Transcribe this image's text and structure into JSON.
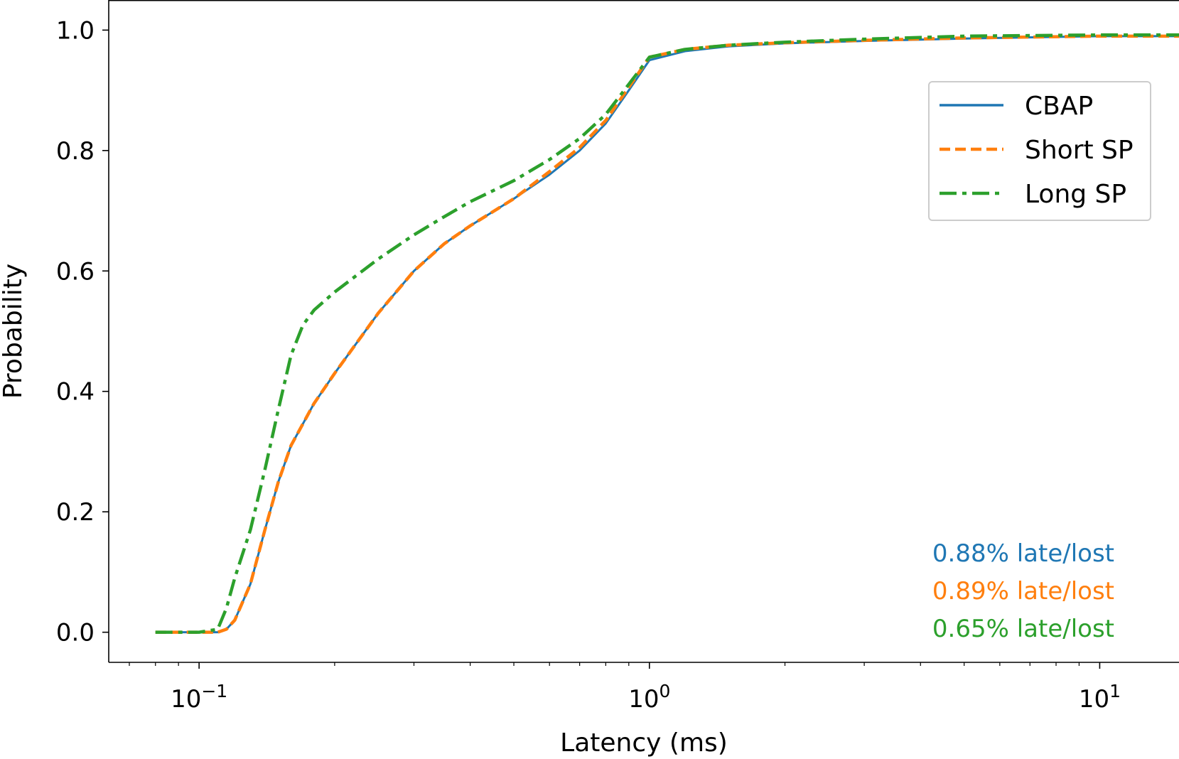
{
  "chart_data": {
    "type": "line",
    "xlabel": "Latency (ms)",
    "ylabel": "Probability",
    "xscale": "log",
    "xlim": [
      0.063,
      15
    ],
    "ylim": [
      -0.05,
      1.05
    ],
    "grid": false,
    "legend_position": "upper-right",
    "x_ticks": [
      {
        "value": 0.1,
        "base": "10",
        "exp": "−1"
      },
      {
        "value": 1,
        "base": "10",
        "exp": "0"
      },
      {
        "value": 10,
        "base": "10",
        "exp": "1"
      }
    ],
    "y_ticks": [
      {
        "value": 0.0,
        "label": "0.0"
      },
      {
        "value": 0.2,
        "label": "0.2"
      },
      {
        "value": 0.4,
        "label": "0.4"
      },
      {
        "value": 0.6,
        "label": "0.6"
      },
      {
        "value": 0.8,
        "label": "0.8"
      },
      {
        "value": 1.0,
        "label": "1.0"
      }
    ],
    "series": [
      {
        "name": "CBAP",
        "color": "#1f77b4",
        "dash": "solid",
        "points": [
          [
            0.08,
            0.0
          ],
          [
            0.1,
            0.0
          ],
          [
            0.11,
            0.0
          ],
          [
            0.115,
            0.005
          ],
          [
            0.12,
            0.02
          ],
          [
            0.13,
            0.08
          ],
          [
            0.14,
            0.17
          ],
          [
            0.15,
            0.25
          ],
          [
            0.16,
            0.31
          ],
          [
            0.18,
            0.38
          ],
          [
            0.2,
            0.43
          ],
          [
            0.25,
            0.53
          ],
          [
            0.3,
            0.6
          ],
          [
            0.35,
            0.645
          ],
          [
            0.4,
            0.675
          ],
          [
            0.5,
            0.72
          ],
          [
            0.6,
            0.76
          ],
          [
            0.7,
            0.8
          ],
          [
            0.8,
            0.845
          ],
          [
            0.9,
            0.9
          ],
          [
            1.0,
            0.95
          ],
          [
            1.2,
            0.965
          ],
          [
            1.5,
            0.973
          ],
          [
            2.0,
            0.978
          ],
          [
            3.0,
            0.982
          ],
          [
            5.0,
            0.986
          ],
          [
            10,
            0.99
          ],
          [
            15,
            0.99
          ]
        ]
      },
      {
        "name": "Short SP",
        "color": "#ff7f0e",
        "dash": "dashed",
        "points": [
          [
            0.08,
            0.0
          ],
          [
            0.1,
            0.0
          ],
          [
            0.11,
            0.0
          ],
          [
            0.115,
            0.005
          ],
          [
            0.12,
            0.02
          ],
          [
            0.13,
            0.08
          ],
          [
            0.14,
            0.17
          ],
          [
            0.15,
            0.25
          ],
          [
            0.16,
            0.31
          ],
          [
            0.18,
            0.38
          ],
          [
            0.2,
            0.43
          ],
          [
            0.25,
            0.53
          ],
          [
            0.3,
            0.6
          ],
          [
            0.35,
            0.645
          ],
          [
            0.4,
            0.675
          ],
          [
            0.5,
            0.72
          ],
          [
            0.6,
            0.765
          ],
          [
            0.7,
            0.805
          ],
          [
            0.8,
            0.85
          ],
          [
            0.9,
            0.905
          ],
          [
            1.0,
            0.955
          ],
          [
            1.2,
            0.968
          ],
          [
            1.5,
            0.975
          ],
          [
            2.0,
            0.979
          ],
          [
            3.0,
            0.983
          ],
          [
            5.0,
            0.987
          ],
          [
            10,
            0.99
          ],
          [
            15,
            0.99
          ]
        ]
      },
      {
        "name": "Long SP",
        "color": "#2ca02c",
        "dash": "dashdot",
        "points": [
          [
            0.08,
            0.0
          ],
          [
            0.1,
            0.0
          ],
          [
            0.11,
            0.005
          ],
          [
            0.115,
            0.04
          ],
          [
            0.12,
            0.09
          ],
          [
            0.13,
            0.17
          ],
          [
            0.14,
            0.27
          ],
          [
            0.15,
            0.37
          ],
          [
            0.16,
            0.46
          ],
          [
            0.17,
            0.51
          ],
          [
            0.18,
            0.535
          ],
          [
            0.2,
            0.565
          ],
          [
            0.25,
            0.62
          ],
          [
            0.3,
            0.66
          ],
          [
            0.35,
            0.69
          ],
          [
            0.4,
            0.715
          ],
          [
            0.5,
            0.75
          ],
          [
            0.6,
            0.785
          ],
          [
            0.7,
            0.82
          ],
          [
            0.8,
            0.86
          ],
          [
            0.9,
            0.91
          ],
          [
            1.0,
            0.955
          ],
          [
            1.2,
            0.968
          ],
          [
            1.5,
            0.975
          ],
          [
            2.0,
            0.98
          ],
          [
            3.0,
            0.985
          ],
          [
            5.0,
            0.99
          ],
          [
            10,
            0.992
          ],
          [
            15,
            0.992
          ]
        ]
      }
    ],
    "annotations": [
      {
        "text": "0.88% late/lost",
        "color": "#1f77b4"
      },
      {
        "text": "0.89% late/lost",
        "color": "#ff7f0e"
      },
      {
        "text": "0.65% late/lost",
        "color": "#2ca02c"
      }
    ]
  }
}
